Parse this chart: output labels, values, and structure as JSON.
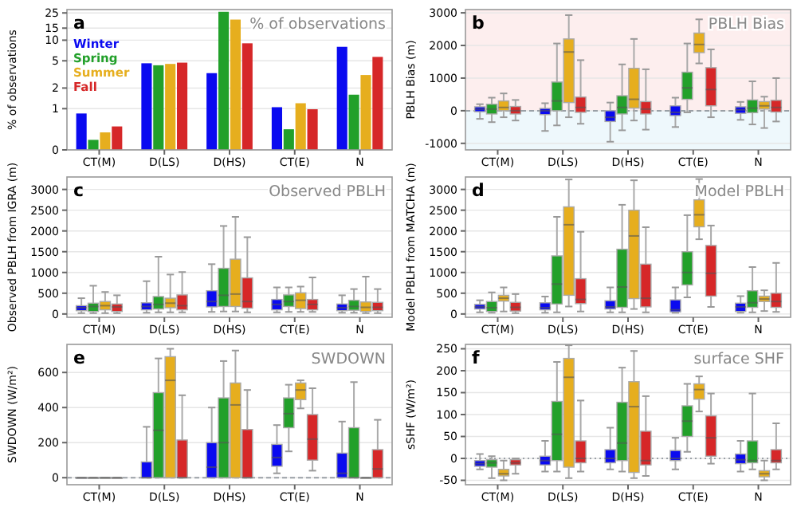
{
  "chart_data": [
    {
      "type": "bar",
      "title": "% of observations",
      "ylabel": "% of observations",
      "annotations": [
        "a"
      ],
      "categories": [
        "CT(M)",
        "D(LS)",
        "D(HS)",
        "CT(E)",
        "N"
      ],
      "log": true,
      "ylim": [
        0.25,
        28
      ],
      "yticks": [
        {
          "value": 0.25,
          "label": "0"
        },
        1,
        2,
        5,
        10,
        15,
        25
      ],
      "grid": "y",
      "legend": "left",
      "series": [
        {
          "name": "Winter",
          "color": "#0a0af0",
          "values": [
            0.85,
            4.6,
            3.3,
            1.05,
            8
          ]
        },
        {
          "name": "Spring",
          "color": "#22a02a",
          "values": [
            0.35,
            4.3,
            26,
            0.5,
            1.6
          ]
        },
        {
          "name": "Summer",
          "color": "#e6ae1e",
          "values": [
            0.45,
            4.5,
            20,
            1.2,
            3.1
          ]
        },
        {
          "name": "Fall",
          "color": "#d62728",
          "values": [
            0.55,
            4.7,
            9,
            0.98,
            5.7
          ]
        }
      ]
    },
    {
      "type": "box",
      "title": "PBLH Bias",
      "ylabel": "PBLH Bias (m)",
      "annotations": [
        "b"
      ],
      "categories": [
        "CT(M)",
        "D(LS)",
        "D(HS)",
        "CT(E)",
        "N"
      ],
      "ylim": [
        -1200,
        3100
      ],
      "yticks": [
        -1000,
        0,
        1000,
        2000,
        3000
      ],
      "grid": "y",
      "bands": [
        {
          "axis": "y",
          "from": 0,
          "to": 3100,
          "color": "#fdeeee"
        },
        {
          "axis": "y",
          "from": -1200,
          "to": 0,
          "color": "#eef8fc"
        }
      ],
      "ref_lines": [
        {
          "axis": "y",
          "value": 0,
          "color": "#9aa0a6",
          "line_style": "dashed"
        }
      ],
      "series": [
        {
          "color": "#0a0af0",
          "boxes": [
            {
              "low": -250,
              "q1": -30,
              "median": 50,
              "q3": 120,
              "high": 200
            },
            {
              "low": -620,
              "q1": -120,
              "median": 0,
              "q3": 70,
              "high": 230
            },
            {
              "low": -950,
              "q1": -330,
              "median": -200,
              "q3": 0,
              "high": 250
            },
            {
              "low": -500,
              "q1": -150,
              "median": -50,
              "q3": 150,
              "high": 400
            },
            {
              "low": -280,
              "q1": -80,
              "median": 30,
              "q3": 120,
              "high": 270
            }
          ]
        },
        {
          "color": "#22a02a",
          "boxes": [
            {
              "low": -350,
              "q1": -100,
              "median": 50,
              "q3": 200,
              "high": 400
            },
            {
              "low": -450,
              "q1": 0,
              "median": 300,
              "q3": 880,
              "high": 2060
            },
            {
              "low": -600,
              "q1": -100,
              "median": 100,
              "q3": 460,
              "high": 1420
            },
            {
              "low": -50,
              "q1": 350,
              "median": 700,
              "q3": 1180,
              "high": 2060
            },
            {
              "low": -420,
              "q1": -60,
              "median": 80,
              "q3": 330,
              "high": 900
            }
          ]
        },
        {
          "color": "#e6ae1e",
          "boxes": [
            {
              "low": -200,
              "q1": 0,
              "median": 100,
              "q3": 300,
              "high": 530
            },
            {
              "low": -200,
              "q1": 250,
              "median": 1800,
              "q3": 2200,
              "high": 2930
            },
            {
              "low": -300,
              "q1": 80,
              "median": 350,
              "q3": 1300,
              "high": 2200
            },
            {
              "low": 1450,
              "q1": 1780,
              "median": 2030,
              "q3": 2380,
              "high": 2800
            },
            {
              "low": -530,
              "q1": 50,
              "median": 150,
              "q3": 280,
              "high": 430
            }
          ]
        },
        {
          "color": "#d62728",
          "boxes": [
            {
              "low": -300,
              "q1": -100,
              "median": 0,
              "q3": 130,
              "high": 330
            },
            {
              "low": -400,
              "q1": -50,
              "median": 100,
              "q3": 420,
              "high": 1550
            },
            {
              "low": -580,
              "q1": -100,
              "median": 50,
              "q3": 280,
              "high": 1270
            },
            {
              "low": -200,
              "q1": 150,
              "median": 650,
              "q3": 1320,
              "high": 1880
            },
            {
              "low": -330,
              "q1": -40,
              "median": 100,
              "q3": 320,
              "high": 1000
            }
          ]
        }
      ]
    },
    {
      "type": "box",
      "title": "Observed PBLH",
      "ylabel": "Observed PBLH from IGRA (m)",
      "annotations": [
        "c"
      ],
      "categories": [
        "CT(M)",
        "D(LS)",
        "D(HS)",
        "CT(E)",
        "N"
      ],
      "ylim": [
        -80,
        3300
      ],
      "yticks": [
        0,
        500,
        1000,
        1500,
        2000,
        2500,
        3000
      ],
      "grid": "y",
      "series": [
        {
          "color": "#0a0af0",
          "boxes": [
            {
              "low": 20,
              "q1": 80,
              "median": 150,
              "q3": 200,
              "high": 380
            },
            {
              "low": 30,
              "q1": 100,
              "median": 180,
              "q3": 270,
              "high": 790
            },
            {
              "low": 50,
              "q1": 170,
              "median": 300,
              "q3": 560,
              "high": 1200
            },
            {
              "low": 40,
              "q1": 100,
              "median": 230,
              "q3": 350,
              "high": 640
            },
            {
              "low": 30,
              "q1": 80,
              "median": 150,
              "q3": 240,
              "high": 450
            }
          ]
        },
        {
          "color": "#22a02a",
          "boxes": [
            {
              "low": 20,
              "q1": 60,
              "median": 180,
              "q3": 260,
              "high": 680
            },
            {
              "low": 40,
              "q1": 120,
              "median": 230,
              "q3": 420,
              "high": 1380
            },
            {
              "low": 60,
              "q1": 180,
              "median": 450,
              "q3": 1100,
              "high": 2120
            },
            {
              "low": 50,
              "q1": 180,
              "median": 300,
              "q3": 460,
              "high": 640
            },
            {
              "low": 30,
              "q1": 90,
              "median": 180,
              "q3": 330,
              "high": 600
            }
          ]
        },
        {
          "color": "#e6ae1e",
          "boxes": [
            {
              "low": 20,
              "q1": 100,
              "median": 200,
              "q3": 300,
              "high": 530
            },
            {
              "low": 40,
              "q1": 150,
              "median": 260,
              "q3": 380,
              "high": 950
            },
            {
              "low": 60,
              "q1": 180,
              "median": 480,
              "q3": 1320,
              "high": 2340
            },
            {
              "low": 50,
              "q1": 130,
              "median": 330,
              "q3": 510,
              "high": 660
            },
            {
              "low": 20,
              "q1": 60,
              "median": 160,
              "q3": 290,
              "high": 900
            }
          ]
        },
        {
          "color": "#d62728",
          "boxes": [
            {
              "low": 20,
              "q1": 60,
              "median": 170,
              "q3": 240,
              "high": 450
            },
            {
              "low": 40,
              "q1": 100,
              "median": 200,
              "q3": 460,
              "high": 1010
            },
            {
              "low": 40,
              "q1": 140,
              "median": 300,
              "q3": 870,
              "high": 1850
            },
            {
              "low": 50,
              "q1": 100,
              "median": 230,
              "q3": 350,
              "high": 880
            },
            {
              "low": 20,
              "q1": 80,
              "median": 160,
              "q3": 280,
              "high": 600
            }
          ]
        }
      ]
    },
    {
      "type": "box",
      "title": "Model PBLH",
      "ylabel": "Model PBLH from MATCHA (m)",
      "annotations": [
        "d"
      ],
      "categories": [
        "CT(M)",
        "D(LS)",
        "D(HS)",
        "CT(E)",
        "N"
      ],
      "ylim": [
        -80,
        3300
      ],
      "yticks": [
        0,
        500,
        1000,
        1500,
        2000,
        2500,
        3000
      ],
      "grid": "y",
      "series": [
        {
          "color": "#0a0af0",
          "boxes": [
            {
              "low": 40,
              "q1": 120,
              "median": 170,
              "q3": 230,
              "high": 330
            },
            {
              "low": 30,
              "q1": 100,
              "median": 150,
              "q3": 270,
              "high": 420
            },
            {
              "low": 40,
              "q1": 120,
              "median": 170,
              "q3": 320,
              "high": 640
            },
            {
              "low": 30,
              "q1": 50,
              "median": 100,
              "q3": 340,
              "high": 640
            },
            {
              "low": 30,
              "q1": 60,
              "median": 170,
              "q3": 260,
              "high": 430
            }
          ]
        },
        {
          "color": "#22a02a",
          "boxes": [
            {
              "low": 30,
              "q1": 60,
              "median": 150,
              "q3": 300,
              "high": 520
            },
            {
              "low": 40,
              "q1": 240,
              "median": 720,
              "q3": 1400,
              "high": 2340
            },
            {
              "low": 40,
              "q1": 160,
              "median": 650,
              "q3": 1560,
              "high": 2630
            },
            {
              "low": 400,
              "q1": 700,
              "median": 1000,
              "q3": 1500,
              "high": 2380
            },
            {
              "low": 40,
              "q1": 160,
              "median": 270,
              "q3": 560,
              "high": 1130
            }
          ]
        },
        {
          "color": "#e6ae1e",
          "boxes": [
            {
              "low": 60,
              "q1": 310,
              "median": 380,
              "q3": 450,
              "high": 640
            },
            {
              "low": 180,
              "q1": 450,
              "median": 2150,
              "q3": 2580,
              "high": 3240
            },
            {
              "low": 120,
              "q1": 370,
              "median": 1880,
              "q3": 2500,
              "high": 3220
            },
            {
              "low": 1800,
              "q1": 2100,
              "median": 2390,
              "q3": 2750,
              "high": 3250
            },
            {
              "low": 70,
              "q1": 300,
              "median": 360,
              "q3": 430,
              "high": 570
            }
          ]
        },
        {
          "color": "#d62728",
          "boxes": [
            {
              "low": 20,
              "q1": 70,
              "median": 160,
              "q3": 280,
              "high": 480
            },
            {
              "low": 60,
              "q1": 250,
              "median": 350,
              "q3": 850,
              "high": 1980
            },
            {
              "low": 40,
              "q1": 170,
              "median": 380,
              "q3": 1200,
              "high": 2090
            },
            {
              "low": 170,
              "q1": 430,
              "median": 980,
              "q3": 1650,
              "high": 2130
            },
            {
              "low": 50,
              "q1": 160,
              "median": 300,
              "q3": 500,
              "high": 1230
            }
          ]
        }
      ]
    },
    {
      "type": "box",
      "title": "SWDOWN",
      "ylabel": "SWDOWN (W/m²)",
      "annotations": [
        "e"
      ],
      "categories": [
        "CT(M)",
        "D(LS)",
        "D(HS)",
        "CT(E)",
        "N"
      ],
      "ylim": [
        -40,
        760
      ],
      "yticks": [
        0,
        200,
        400,
        600
      ],
      "grid": "y",
      "ref_lines": [
        {
          "axis": "y",
          "value": 0,
          "color": "#9aa0a6",
          "line_style": "dashed"
        }
      ],
      "series": [
        {
          "color": "#0a0af0",
          "boxes": [
            {
              "low": 0,
              "q1": 0,
              "median": 0,
              "q3": 0,
              "high": 0
            },
            {
              "low": 0,
              "q1": 0,
              "median": 0,
              "q3": 90,
              "high": 290
            },
            {
              "low": 0,
              "q1": 0,
              "median": 60,
              "q3": 200,
              "high": 400
            },
            {
              "low": 25,
              "q1": 65,
              "median": 115,
              "q3": 190,
              "high": 300
            },
            {
              "low": 0,
              "q1": 0,
              "median": 25,
              "q3": 140,
              "high": 320
            }
          ]
        },
        {
          "color": "#22a02a",
          "boxes": [
            {
              "low": 0,
              "q1": 0,
              "median": 0,
              "q3": 0,
              "high": 0
            },
            {
              "low": 0,
              "q1": 0,
              "median": 270,
              "q3": 485,
              "high": 680
            },
            {
              "low": 0,
              "q1": 0,
              "median": 200,
              "q3": 455,
              "high": 665
            },
            {
              "low": 150,
              "q1": 285,
              "median": 365,
              "q3": 455,
              "high": 530
            },
            {
              "low": 0,
              "q1": 0,
              "median": 0,
              "q3": 285,
              "high": 545
            }
          ]
        },
        {
          "color": "#e6ae1e",
          "boxes": [
            {
              "low": 0,
              "q1": 0,
              "median": 0,
              "q3": 0,
              "high": 0
            },
            {
              "low": 0,
              "q1": 0,
              "median": 555,
              "q3": 690,
              "high": 735
            },
            {
              "low": 0,
              "q1": 0,
              "median": 415,
              "q3": 540,
              "high": 725
            },
            {
              "low": 395,
              "q1": 445,
              "median": 500,
              "q3": 540,
              "high": 555
            },
            {
              "low": 0,
              "q1": 0,
              "median": 0,
              "q3": 0,
              "high": 0
            }
          ]
        },
        {
          "color": "#d62728",
          "boxes": [
            {
              "low": 0,
              "q1": 0,
              "median": 0,
              "q3": 0,
              "high": 0
            },
            {
              "low": 0,
              "q1": 0,
              "median": 0,
              "q3": 215,
              "high": 470
            },
            {
              "low": 0,
              "q1": 0,
              "median": 0,
              "q3": 275,
              "high": 500
            },
            {
              "low": 40,
              "q1": 100,
              "median": 220,
              "q3": 360,
              "high": 510
            },
            {
              "low": 0,
              "q1": 0,
              "median": 50,
              "q3": 160,
              "high": 330
            }
          ]
        }
      ]
    },
    {
      "type": "box",
      "title": "surface SHF",
      "ylabel": "sSHF (W/m²)",
      "annotations": [
        "f"
      ],
      "categories": [
        "CT(M)",
        "D(LS)",
        "D(HS)",
        "CT(E)",
        "N"
      ],
      "ylim": [
        -60,
        260
      ],
      "yticks": [
        -50,
        0,
        50,
        100,
        150,
        200,
        250
      ],
      "grid": "y",
      "ref_lines": [
        {
          "axis": "y",
          "value": 0,
          "color": "#9aa0a6",
          "line_style": "dotted"
        }
      ],
      "series": [
        {
          "color": "#0a0af0",
          "boxes": [
            {
              "low": -25,
              "q1": -18,
              "median": -12,
              "q3": -5,
              "high": 10
            },
            {
              "low": -30,
              "q1": -15,
              "median": -5,
              "q3": 5,
              "high": 40
            },
            {
              "low": -25,
              "q1": -10,
              "median": 0,
              "q3": 20,
              "high": 70
            },
            {
              "low": -25,
              "q1": -5,
              "median": 0,
              "q3": 18,
              "high": 47
            },
            {
              "low": -30,
              "q1": -12,
              "median": -3,
              "q3": 10,
              "high": 40
            }
          ]
        },
        {
          "color": "#22a02a",
          "boxes": [
            {
              "low": -45,
              "q1": -20,
              "median": -10,
              "q3": -3,
              "high": 5
            },
            {
              "low": -30,
              "q1": -5,
              "median": 55,
              "q3": 130,
              "high": 220
            },
            {
              "low": -30,
              "q1": -5,
              "median": 35,
              "q3": 128,
              "high": 207
            },
            {
              "low": 15,
              "q1": 50,
              "median": 85,
              "q3": 120,
              "high": 170
            },
            {
              "low": -25,
              "q1": -10,
              "median": -5,
              "q3": 40,
              "high": 148
            }
          ]
        },
        {
          "color": "#e6ae1e",
          "boxes": [
            {
              "low": -50,
              "q1": -40,
              "median": -35,
              "q3": -25,
              "high": -5
            },
            {
              "low": -45,
              "q1": -20,
              "median": 185,
              "q3": 228,
              "high": 258
            },
            {
              "low": -45,
              "q1": -32,
              "median": 118,
              "q3": 175,
              "high": 245
            },
            {
              "low": 107,
              "q1": 135,
              "median": 157,
              "q3": 170,
              "high": 187
            },
            {
              "low": -50,
              "q1": -42,
              "median": -35,
              "q3": -28,
              "high": -5
            }
          ]
        },
        {
          "color": "#d62728",
          "boxes": [
            {
              "low": -35,
              "q1": -15,
              "median": -10,
              "q3": -3,
              "high": 0
            },
            {
              "low": -30,
              "q1": -10,
              "median": 0,
              "q3": 40,
              "high": 132
            },
            {
              "low": -40,
              "q1": -15,
              "median": -5,
              "q3": 62,
              "high": 142
            },
            {
              "low": -12,
              "q1": 5,
              "median": 47,
              "q3": 97,
              "high": 148
            },
            {
              "low": -25,
              "q1": -10,
              "median": -5,
              "q3": 20,
              "high": 80
            }
          ]
        }
      ]
    }
  ]
}
